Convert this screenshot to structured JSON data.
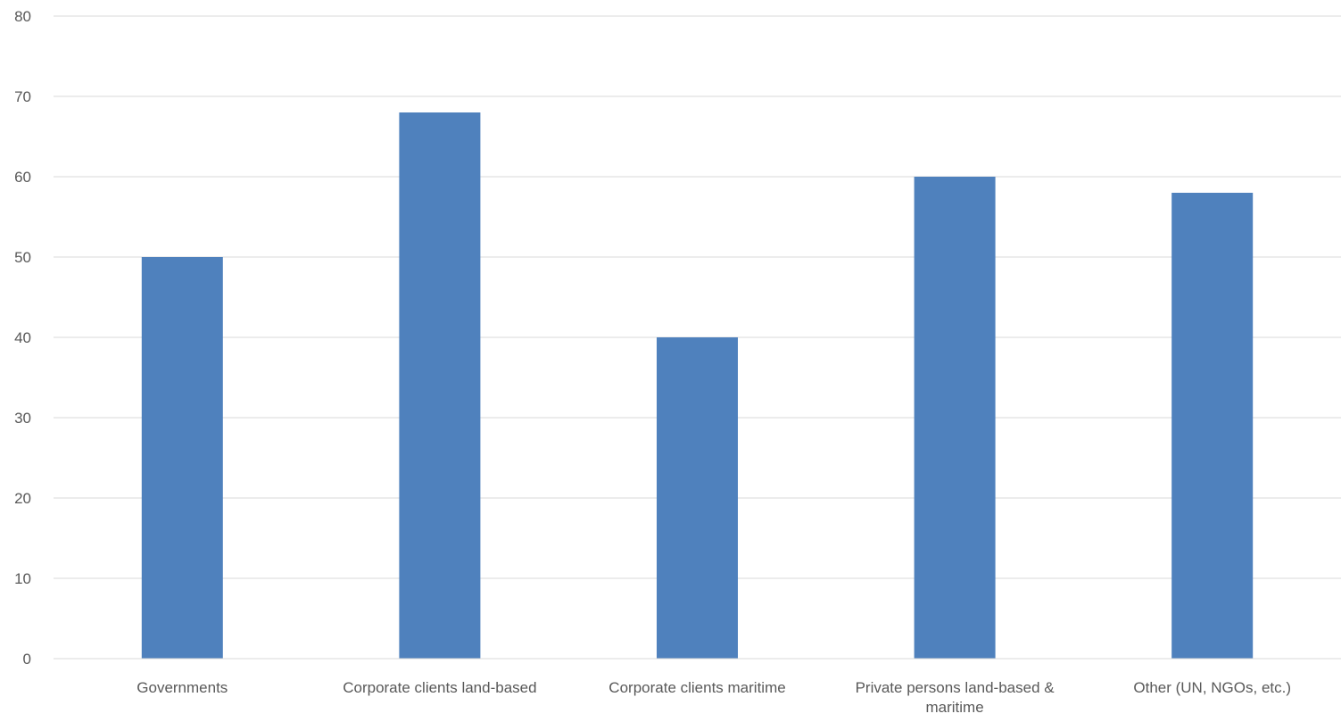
{
  "chart_data": {
    "type": "bar",
    "title": "",
    "xlabel": "",
    "ylabel": "",
    "categories": [
      "Governments",
      "Corporate clients land-based",
      "Corporate clients maritime",
      "Private persons land-based & maritime",
      "Other (UN, NGOs, etc.)"
    ],
    "series": [
      {
        "values": [
          50,
          68,
          40,
          60,
          58
        ],
        "color": "#4f81bd"
      }
    ],
    "ylim": [
      0,
      80
    ],
    "yticks": [
      0,
      10,
      20,
      30,
      40,
      50,
      60,
      70,
      80
    ],
    "grid": true,
    "legend": "none"
  }
}
